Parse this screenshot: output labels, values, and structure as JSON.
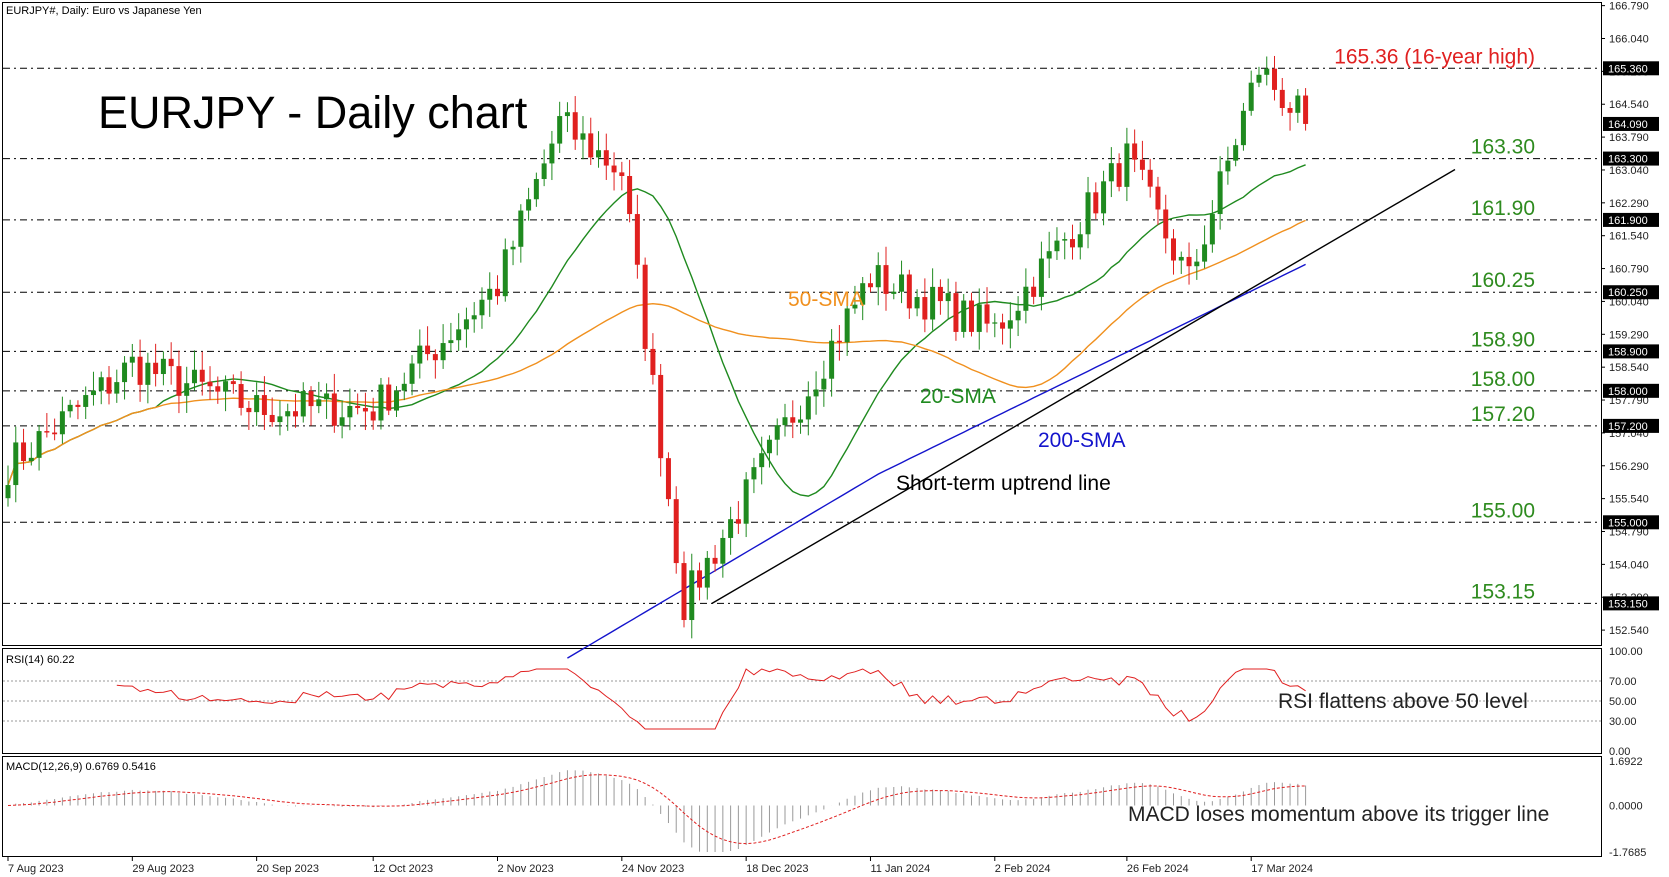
{
  "header": {
    "symbol_line": "EURJPY#, Daily:  Euro vs Japanese Yen",
    "chart_title": "EURJPY - Daily chart"
  },
  "colors": {
    "bull": "#1f8a1f",
    "bear": "#e0201f",
    "sma20": "#1f8a1f",
    "sma50": "#f0901e",
    "sma200": "#1414cc",
    "level_text": "#2e8b1f",
    "high_text": "#e02020",
    "rsi": "#e02020",
    "macd_signal": "#e02020",
    "macd_hist": "#9a9a9a"
  },
  "price_axis": {
    "ticks": [
      "166.790",
      "166.040",
      "165.290",
      "164.540",
      "163.790",
      "163.040",
      "162.290",
      "161.540",
      "160.790",
      "160.040",
      "159.290",
      "158.540",
      "157.790",
      "157.040",
      "156.290",
      "155.540",
      "154.790",
      "154.040",
      "153.290",
      "152.540"
    ],
    "badges": [
      "165.360",
      "164.090",
      "163.300",
      "161.900",
      "160.250",
      "158.900",
      "158.000",
      "157.200",
      "155.000",
      "153.150"
    ]
  },
  "levels": [
    {
      "label": "165.36 (16-year high)",
      "value": 165.36,
      "style": "high"
    },
    {
      "label": "163.30",
      "value": 163.3
    },
    {
      "label": "161.90",
      "value": 161.9
    },
    {
      "label": "160.25",
      "value": 160.25
    },
    {
      "label": "158.90",
      "value": 158.9
    },
    {
      "label": "158.00",
      "value": 158.0
    },
    {
      "label": "157.20",
      "value": 157.2
    },
    {
      "label": "155.00",
      "value": 155.0
    },
    {
      "label": "153.15",
      "value": 153.15
    }
  ],
  "annotations": {
    "sma50": "50-SMA",
    "sma20": "20-SMA",
    "sma200": "200-SMA",
    "trendline": "Short-term uptrend line",
    "rsi_note": "RSI flattens above 50 level",
    "macd_note": "MACD loses momentum above its trigger line"
  },
  "rsi_panel": {
    "title": "RSI(14) 60.22",
    "ticks": [
      "100.00",
      "70.00",
      "50.00",
      "30.00",
      "0.00"
    ]
  },
  "macd_panel": {
    "title": "MACD(12,26,9) 0.6769 0.5416",
    "ticks": [
      "1.6922",
      "0.0000",
      "-1.7685"
    ]
  },
  "date_axis": [
    "7 Aug 2023",
    "29 Aug 2023",
    "20 Sep 2023",
    "12 Oct 2023",
    "2 Nov 2023",
    "24 Nov 2023",
    "18 Dec 2023",
    "11 Jan 2024",
    "2 Feb 2024",
    "26 Feb 2024",
    "17 Mar 2024"
  ],
  "chart_data": {
    "type": "candlestick",
    "instrument": "EURJPY",
    "timeframe": "Daily",
    "y_range": [
      152.2,
      166.85
    ],
    "keypoints": [
      {
        "date": "7 Aug 2023",
        "close": 156.3
      },
      {
        "date": "29 Aug 2023",
        "close": 158.6
      },
      {
        "date": "20 Sep 2023",
        "close": 157.6
      },
      {
        "date": "12 Oct 2023",
        "close": 157.6
      },
      {
        "date": "2 Nov 2023",
        "close": 160.4
      },
      {
        "date": "13 Nov 2023",
        "close": 164.1
      },
      {
        "date": "24 Nov 2023",
        "close": 163.0
      },
      {
        "date": "7 Dec 2023",
        "close": 153.15
      },
      {
        "date": "18 Dec 2023",
        "close": 155.6
      },
      {
        "date": "11 Jan 2024",
        "close": 160.6
      },
      {
        "date": "2 Feb 2024",
        "close": 159.4
      },
      {
        "date": "26 Feb 2024",
        "close": 163.3
      },
      {
        "date": "6 Mar 2024",
        "close": 160.5
      },
      {
        "date": "19 Mar 2024",
        "close": 165.36
      },
      {
        "date": "27 Mar 2024",
        "close": 164.09
      }
    ],
    "series": [
      {
        "name": "20-SMA"
      },
      {
        "name": "50-SMA"
      },
      {
        "name": "200-SMA"
      }
    ],
    "rsi_last": 60.22,
    "macd_last": 0.6769,
    "macd_signal_last": 0.5416
  }
}
